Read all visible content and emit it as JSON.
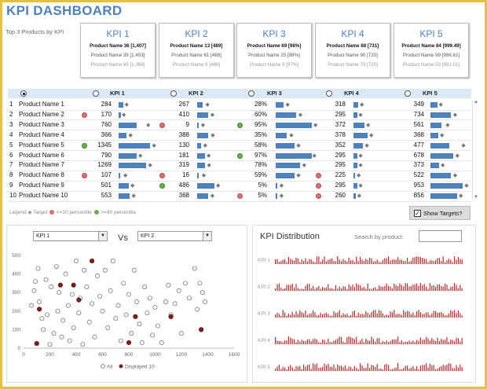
{
  "title": "KPI DASHBOARD",
  "top3_label": "Top 3 Products by KPI",
  "kpi_boxes": [
    {
      "title": "KPI 1",
      "lines": [
        "Product Name 36 [1,407]",
        "Product Name 39 [1,403]",
        "Product Name 65 [1,368]"
      ]
    },
    {
      "title": "KPI 2",
      "lines": [
        "Product Name 13 [489]",
        "Product Name 61 [488]",
        "Product Name 9 [486]"
      ]
    },
    {
      "title": "KPI 3",
      "lines": [
        "Product Name 69 [98%]",
        "Product Name 25 [98%]",
        "Product Name 8 [97%]"
      ]
    },
    {
      "title": "KPI 4",
      "lines": [
        "Product Name 88 [731]",
        "Product Name 90 [720]",
        "Product Name 73 [720]"
      ]
    },
    {
      "title": "KPI 5",
      "lines": [
        "Product Name 84 [999.49]",
        "Product Name 99 [996.61]",
        "Product Name 53 [992.01]"
      ]
    }
  ],
  "table": {
    "headers": [
      "KPI 1",
      "KPI 2",
      "KPI 3",
      "KPI 4",
      "KPI 5"
    ],
    "rows": [
      {
        "n": "1",
        "name": "Product Name 1",
        "v": [
          "284",
          "267",
          "28%",
          "318",
          "349"
        ],
        "bar": [
          0.12,
          0.15,
          0.2,
          0.15,
          0.18
        ],
        "tgt": [
          0.15,
          0.22,
          0.26,
          0.2,
          0.22
        ],
        "flag": [
          "",
          "",
          "",
          "",
          ""
        ]
      },
      {
        "n": "2",
        "name": "Product Name 2",
        "v": [
          "170",
          "410",
          "60%",
          "295",
          "734"
        ],
        "bar": [
          0.05,
          0.3,
          0.55,
          0.12,
          0.55
        ],
        "tgt": [
          0.08,
          0.35,
          0.6,
          0.16,
          0.6
        ],
        "flag": [
          "red",
          "",
          "",
          "",
          ""
        ]
      },
      {
        "n": "3",
        "name": "Product Name 3",
        "v": [
          "760",
          "9",
          "95%",
          "372",
          "561"
        ],
        "bar": [
          0.45,
          0.03,
          0.95,
          0.35,
          0.3
        ],
        "tgt": [
          0.7,
          0.1,
          1.0,
          0.4,
          0.4
        ],
        "flag": [
          "",
          "red",
          "green",
          "",
          ""
        ]
      },
      {
        "n": "4",
        "name": "Product Name 4",
        "v": [
          "366",
          "388",
          "35%",
          "378",
          "368"
        ],
        "bar": [
          0.2,
          0.3,
          0.3,
          0.45,
          0.2
        ],
        "tgt": [
          0.25,
          0.36,
          0.36,
          0.5,
          0.25
        ],
        "flag": [
          "",
          "",
          "",
          "",
          ""
        ]
      },
      {
        "n": "5",
        "name": "Product Name 5",
        "v": [
          "1345",
          "130",
          "58%",
          "352",
          "477"
        ],
        "bar": [
          0.8,
          0.1,
          0.5,
          0.3,
          0.5
        ],
        "tgt": [
          0.85,
          0.16,
          0.55,
          0.36,
          0.82
        ],
        "flag": [
          "green",
          "",
          "",
          "",
          ""
        ]
      },
      {
        "n": "6",
        "name": "Product Name 6",
        "v": [
          "790",
          "181",
          "97%",
          "295",
          "678"
        ],
        "bar": [
          0.45,
          0.2,
          0.95,
          0.12,
          0.6
        ],
        "tgt": [
          0.5,
          0.25,
          0.97,
          0.16,
          0.66
        ],
        "flag": [
          "",
          "",
          "green",
          "",
          ""
        ]
      },
      {
        "n": "7",
        "name": "Product Name 7",
        "v": [
          "1269",
          "319",
          "78%",
          "295",
          "373"
        ],
        "bar": [
          0.7,
          0.2,
          0.65,
          0.12,
          0.22
        ],
        "tgt": [
          0.75,
          0.26,
          0.7,
          0.16,
          0.27
        ],
        "flag": [
          "",
          "",
          "",
          "",
          ""
        ]
      },
      {
        "n": "8",
        "name": "Product Name 8",
        "v": [
          "107",
          "16",
          "59%",
          "225",
          "522"
        ],
        "bar": [
          0.03,
          0.03,
          0.5,
          0.04,
          0.55
        ],
        "tgt": [
          0.12,
          0.12,
          0.55,
          0.1,
          0.6
        ],
        "flag": [
          "red",
          "red",
          "",
          "red",
          ""
        ]
      },
      {
        "n": "9",
        "name": "Product Name 9",
        "v": [
          "501",
          "486",
          "5%",
          "295",
          "953"
        ],
        "bar": [
          0.25,
          0.45,
          0.05,
          0.12,
          0.85
        ],
        "tgt": [
          0.3,
          0.5,
          0.1,
          0.16,
          0.9
        ],
        "flag": [
          "",
          "green",
          "",
          "red",
          ""
        ]
      },
      {
        "n": "10",
        "name": "Product Name 10",
        "v": [
          "553",
          "368",
          "5%",
          "260",
          "856"
        ],
        "bar": [
          0.28,
          0.3,
          0.05,
          0.08,
          0.7
        ],
        "tgt": [
          0.33,
          0.35,
          0.1,
          0.12,
          0.75
        ],
        "flag": [
          "",
          "",
          "red",
          "red",
          ""
        ]
      }
    ]
  },
  "legend": {
    "label": "Legend",
    "target": "Target",
    "low": "<=10 percentile",
    "high": ">=90 percentile"
  },
  "show_targets": {
    "label": "Show Targets?",
    "checked": true
  },
  "compare": {
    "x_select": "KPI 1",
    "vs": "Vs",
    "y_select": "KPI 2"
  },
  "scatter": {
    "chart_data": {
      "type": "scatter",
      "x_ticks": [
        "0",
        "200",
        "400",
        "600",
        "800",
        "1000",
        "1200",
        "1400",
        "1600"
      ],
      "y_ticks": [
        "0",
        "100",
        "200",
        "300",
        "400",
        "500"
      ],
      "xlim": [
        0,
        1600
      ],
      "ylim": [
        0,
        500
      ],
      "all": [
        [
          60,
          230
        ],
        [
          80,
          310
        ],
        [
          90,
          360
        ],
        [
          110,
          430
        ],
        [
          120,
          250
        ],
        [
          140,
          160
        ],
        [
          150,
          100
        ],
        [
          170,
          370
        ],
        [
          180,
          180
        ],
        [
          200,
          20
        ],
        [
          210,
          330
        ],
        [
          230,
          80
        ],
        [
          250,
          440
        ],
        [
          260,
          200
        ],
        [
          270,
          300
        ],
        [
          290,
          60
        ],
        [
          300,
          150
        ],
        [
          320,
          400
        ],
        [
          340,
          230
        ],
        [
          350,
          40
        ],
        [
          370,
          290
        ],
        [
          380,
          110
        ],
        [
          400,
          470
        ],
        [
          420,
          190
        ],
        [
          430,
          270
        ],
        [
          450,
          20
        ],
        [
          460,
          420
        ],
        [
          480,
          330
        ],
        [
          500,
          140
        ],
        [
          520,
          240
        ],
        [
          540,
          60
        ],
        [
          560,
          390
        ],
        [
          580,
          280
        ],
        [
          600,
          200
        ],
        [
          620,
          420
        ],
        [
          640,
          110
        ],
        [
          660,
          310
        ],
        [
          680,
          470
        ],
        [
          700,
          160
        ],
        [
          720,
          230
        ],
        [
          740,
          40
        ],
        [
          760,
          350
        ],
        [
          780,
          180
        ],
        [
          800,
          290
        ],
        [
          820,
          80
        ],
        [
          840,
          420
        ],
        [
          860,
          250
        ],
        [
          880,
          130
        ],
        [
          900,
          30
        ],
        [
          920,
          330
        ],
        [
          940,
          190
        ],
        [
          960,
          270
        ],
        [
          980,
          70
        ],
        [
          1000,
          220
        ],
        [
          1020,
          120
        ],
        [
          1050,
          30
        ],
        [
          1080,
          250
        ],
        [
          1100,
          340
        ],
        [
          1120,
          180
        ],
        [
          1150,
          240
        ],
        [
          1180,
          310
        ],
        [
          1200,
          80
        ],
        [
          1230,
          350
        ],
        [
          1260,
          270
        ],
        [
          1300,
          430
        ],
        [
          1320,
          210
        ],
        [
          1340,
          350
        ],
        [
          1360,
          300
        ],
        [
          1380,
          250
        ]
      ],
      "displayed": [
        [
          100,
          25
        ],
        [
          120,
          210
        ],
        [
          280,
          340
        ],
        [
          380,
          340
        ],
        [
          420,
          260
        ],
        [
          520,
          470
        ],
        [
          800,
          30
        ],
        [
          850,
          170
        ],
        [
          1120,
          170
        ],
        [
          1350,
          100
        ]
      ],
      "legend": [
        "All",
        "Displayed 10"
      ]
    }
  },
  "distribution": {
    "title": "KPI Distribution",
    "search_label": "Search by product:",
    "search_value": "",
    "rows": [
      "KPI 1",
      "KPI 2",
      "KPI 3",
      "KPI 4",
      "KPI 5"
    ]
  },
  "colors": {
    "accent": "#4f81bd",
    "header_bg": "#dbe9f6",
    "frame": "#e3c23a",
    "bar": "#4f81bd",
    "dist_bar": "#a8322f",
    "red_dot": "#e06f6f",
    "green_dot": "#6ab04c"
  }
}
